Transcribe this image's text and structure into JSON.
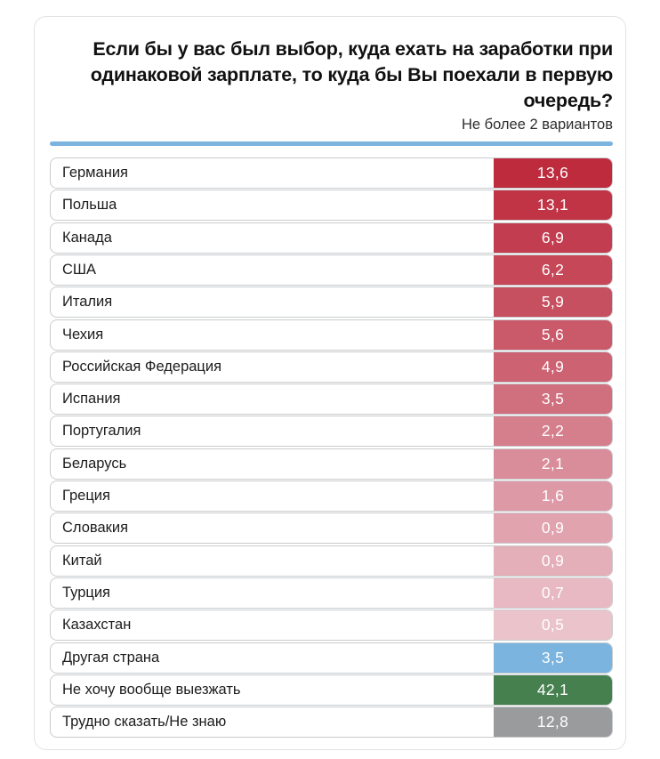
{
  "title": "Если бы у вас был выбор, куда ехать на заработки при одинаковой зарплате, то куда бы Вы поехали в первую очередь?",
  "subtitle": "Не более 2 вариантов",
  "accent_color": "#7AB4DF",
  "chart_data": {
    "type": "bar",
    "orientation": "horizontal",
    "title": "Если бы у вас был выбор, куда ехать на заработки при одинаковой зарплате, то куда бы Вы поехали в первую очередь?",
    "subtitle": "Не более 2 вариантов",
    "unit": "percent",
    "legend": "none",
    "grid": false,
    "categories": [
      "Германия",
      "Польша",
      "Канада",
      "США",
      "Италия",
      "Чехия",
      "Российская Федерация",
      "Испания",
      "Португалия",
      "Беларусь",
      "Греция",
      "Словакия",
      "Китай",
      "Турция",
      "Казахстан",
      "Другая страна",
      "Не хочу вообще выезжать",
      "Трудно сказать/Не знаю"
    ],
    "values": [
      13.6,
      13.1,
      6.9,
      6.2,
      5.9,
      5.6,
      4.9,
      3.5,
      2.2,
      2.1,
      1.6,
      0.9,
      0.9,
      0.7,
      0.5,
      3.5,
      42.1,
      12.8
    ],
    "value_labels": [
      "13,6",
      "13,1",
      "6,9",
      "6,2",
      "5,9",
      "5,6",
      "4,9",
      "3,5",
      "2,2",
      "2,1",
      "1,6",
      "0,9",
      "0,9",
      "0,7",
      "0,5",
      "3,5",
      "42,1",
      "12,8"
    ],
    "bar_colors": [
      "#BD2B3D",
      "#C03446",
      "#C23D4F",
      "#C54758",
      "#C75060",
      "#CA5969",
      "#CC6272",
      "#D0707F",
      "#D57E8C",
      "#D98C99",
      "#DD9AA6",
      "#E1A4AF",
      "#E4AFB9",
      "#E8B9C2",
      "#EBC3CB",
      "#7AB4DF",
      "#47804F",
      "#9A9B9D"
    ]
  }
}
